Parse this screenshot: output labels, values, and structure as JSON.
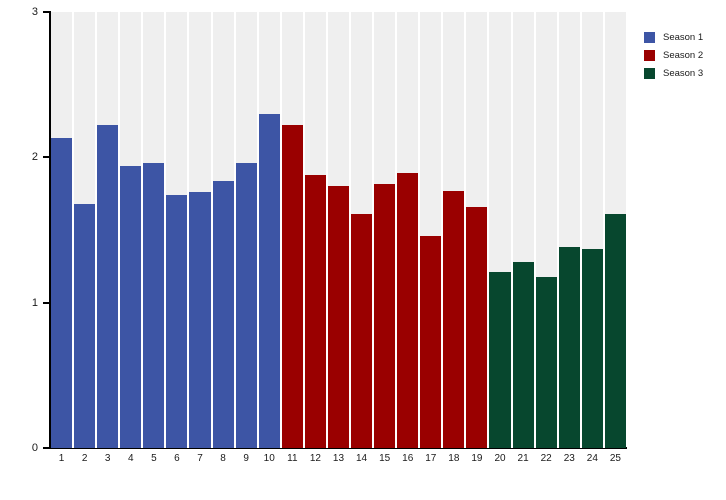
{
  "chart_data": {
    "type": "bar",
    "title": "",
    "xlabel": "",
    "ylabel": "",
    "ylim": [
      0,
      3
    ],
    "yticks": [
      0,
      1,
      2,
      3
    ],
    "grid": "off",
    "plot_background": "#efefef",
    "legend_position": "top-right",
    "categories": [
      "1",
      "2",
      "3",
      "4",
      "5",
      "6",
      "7",
      "8",
      "9",
      "10",
      "11",
      "12",
      "13",
      "14",
      "15",
      "16",
      "17",
      "18",
      "19",
      "20",
      "21",
      "22",
      "23",
      "24",
      "25"
    ],
    "series": [
      {
        "name": "Season 1",
        "color": "#3d55a5",
        "first_category": "1",
        "values": [
          2.13,
          1.68,
          2.22,
          1.94,
          1.96,
          1.74,
          1.76,
          1.84,
          1.96,
          2.3
        ]
      },
      {
        "name": "Season 2",
        "color": "#9a0000",
        "first_category": "11",
        "values": [
          2.22,
          1.88,
          1.8,
          1.61,
          1.82,
          1.89,
          1.46,
          1.77,
          1.66
        ]
      },
      {
        "name": "Season 3",
        "color": "#07472e",
        "first_category": "20",
        "values": [
          1.21,
          1.28,
          1.18,
          1.38,
          1.37,
          1.61
        ]
      }
    ]
  }
}
